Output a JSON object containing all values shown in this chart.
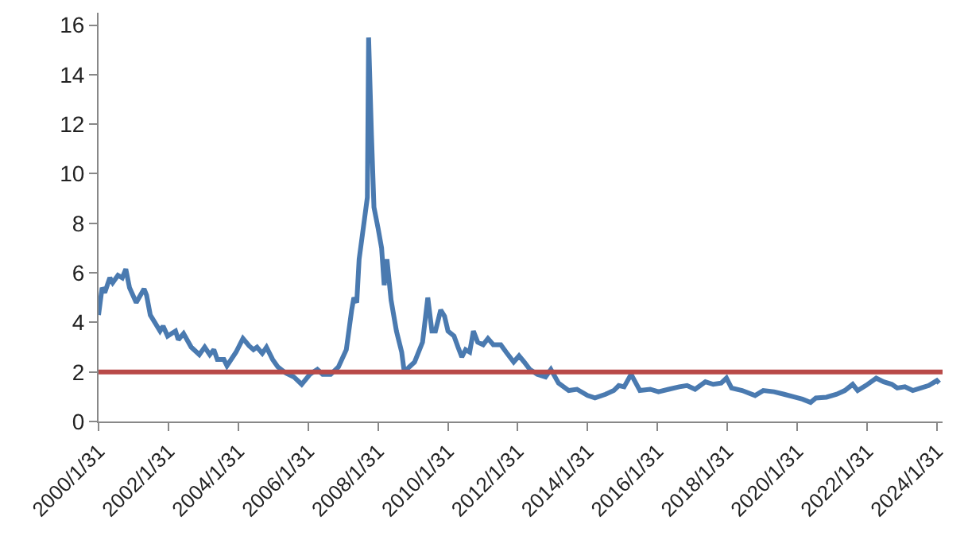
{
  "chart_data": {
    "type": "line",
    "x": [
      "2000-01-31",
      "2000-03-08",
      "2000-04-05",
      "2000-05-28",
      "2000-06-27",
      "2000-08-21",
      "2000-10-05",
      "2000-11-11",
      "2000-12-20",
      "2001-02-28",
      "2001-05-21",
      "2001-06-16",
      "2001-07-25",
      "2001-11-04",
      "2001-12-06",
      "2002-01-22",
      "2002-04-15",
      "2002-05-14",
      "2002-07-08",
      "2002-09-26",
      "2002-12-20",
      "2003-02-14",
      "2003-04-08",
      "2003-05-21",
      "2003-06-26",
      "2003-09-03",
      "2003-10-05",
      "2004-01-08",
      "2004-03-20",
      "2004-05-24",
      "2004-07-08",
      "2004-08-14",
      "2004-10-08",
      "2004-11-21",
      "2005-01-25",
      "2005-03-20",
      "2005-06-13",
      "2005-09-03",
      "2005-11-24",
      "2006-02-17",
      "2006-05-07",
      "2006-07-02",
      "2006-09-23",
      "2006-12-13",
      "2007-03-06",
      "2007-05-01",
      "2007-05-24",
      "2007-06-23",
      "2007-07-18",
      "2007-09-13",
      "2007-10-12",
      "2007-10-25",
      "2007-11-24",
      "2007-12-20",
      "2008-02-01",
      "2008-03-09",
      "2008-04-05",
      "2008-05-04",
      "2008-06-16",
      "2008-08-11",
      "2008-10-05",
      "2008-11-01",
      "2008-12-23",
      "2009-02-17",
      "2009-05-11",
      "2009-07-05",
      "2009-08-17",
      "2009-09-23",
      "2009-11-17",
      "2009-12-27",
      "2010-02-01",
      "2010-04-05",
      "2010-05-17",
      "2010-06-26",
      "2010-08-04",
      "2010-09-16",
      "2010-10-25",
      "2010-12-09",
      "2011-02-04",
      "2011-03-26",
      "2011-05-21",
      "2011-08-07",
      "2011-10-02",
      "2011-12-20",
      "2012-02-14",
      "2012-04-08",
      "2012-06-06",
      "2012-08-24",
      "2012-11-17",
      "2013-01-12",
      "2013-04-02",
      "2013-07-18",
      "2013-10-12",
      "2014-01-31",
      "2014-04-18",
      "2014-08-07",
      "2014-11-01",
      "2014-12-23",
      "2015-02-17",
      "2015-05-01",
      "2015-06-06",
      "2015-08-01",
      "2015-11-17",
      "2016-02-11",
      "2016-05-28",
      "2016-09-16",
      "2016-12-06",
      "2017-02-28",
      "2017-06-16",
      "2017-09-06",
      "2017-11-28",
      "2018-01-22",
      "2018-03-16",
      "2018-07-05",
      "2018-11-17",
      "2019-02-11",
      "2019-06-03",
      "2019-09-16",
      "2020-01-08",
      "2020-03-26",
      "2020-06-20",
      "2020-08-14",
      "2020-12-03",
      "2021-03-20",
      "2021-06-13",
      "2021-09-03",
      "2021-10-25",
      "2022-01-18",
      "2022-05-07",
      "2022-07-25",
      "2022-10-18",
      "2022-12-13",
      "2023-03-03",
      "2023-05-24",
      "2023-08-17",
      "2023-11-07",
      "2024-01-31",
      "2024-02-25"
    ],
    "series": [
      {
        "color": "#4a7ab0",
        "values": [
          4.3,
          5.4,
          5.2,
          5.8,
          5.6,
          5.9,
          5.8,
          6.15,
          5.4,
          4.8,
          5.35,
          5.1,
          4.3,
          3.65,
          3.85,
          3.45,
          3.65,
          3.3,
          3.55,
          3.0,
          2.7,
          3.0,
          2.7,
          2.9,
          2.5,
          2.5,
          2.25,
          2.8,
          3.35,
          3.05,
          2.9,
          3.0,
          2.75,
          3.0,
          2.5,
          2.2,
          1.95,
          1.8,
          1.5,
          1.9,
          2.1,
          1.9,
          1.9,
          2.2,
          2.9,
          4.5,
          5.0,
          4.8,
          6.55,
          8.2,
          9.05,
          15.5,
          11.55,
          8.65,
          7.8,
          7.0,
          5.5,
          6.55,
          4.9,
          3.65,
          2.8,
          2.0,
          2.2,
          2.4,
          3.2,
          5.0,
          3.65,
          3.65,
          4.5,
          4.25,
          3.65,
          3.45,
          3.0,
          2.6,
          2.9,
          2.8,
          3.65,
          3.2,
          3.1,
          3.35,
          3.1,
          3.1,
          2.8,
          2.4,
          2.65,
          2.4,
          2.1,
          1.9,
          1.8,
          2.1,
          1.55,
          1.25,
          1.3,
          1.05,
          0.95,
          1.1,
          1.25,
          1.45,
          1.4,
          1.9,
          1.65,
          1.25,
          1.3,
          1.2,
          1.3,
          1.4,
          1.45,
          1.3,
          1.6,
          1.5,
          1.55,
          1.75,
          1.35,
          1.25,
          1.05,
          1.25,
          1.2,
          1.1,
          0.98,
          0.9,
          0.77,
          0.95,
          0.98,
          1.1,
          1.25,
          1.5,
          1.25,
          1.45,
          1.75,
          1.6,
          1.5,
          1.35,
          1.4,
          1.25,
          1.35,
          1.45,
          1.65,
          1.55
        ]
      }
    ],
    "xlim": [
      "2000-01-31",
      "2024-03-31"
    ],
    "xticks": [
      {
        "value": "2000-01-31",
        "label": "2000/1/31"
      },
      {
        "value": "2002-01-31",
        "label": "2002/1/31"
      },
      {
        "value": "2004-01-31",
        "label": "2004/1/31"
      },
      {
        "value": "2006-01-31",
        "label": "2006/1/31"
      },
      {
        "value": "2008-01-31",
        "label": "2008/1/31"
      },
      {
        "value": "2010-01-31",
        "label": "2010/1/31"
      },
      {
        "value": "2012-01-31",
        "label": "2012/1/31"
      },
      {
        "value": "2014-01-31",
        "label": "2014/1/31"
      },
      {
        "value": "2016-01-31",
        "label": "2016/1/31"
      },
      {
        "value": "2018-01-31",
        "label": "2018/1/31"
      },
      {
        "value": "2020-01-31",
        "label": "2020/1/31"
      },
      {
        "value": "2022-01-31",
        "label": "2022/1/31"
      },
      {
        "value": "2024-01-31",
        "label": "2024/1/31"
      }
    ],
    "ylim": [
      0,
      16.5
    ],
    "yticks": [
      0,
      2,
      4,
      6,
      8,
      10,
      12,
      14,
      16
    ],
    "ref_lines": [
      {
        "axis": "y",
        "value": 2,
        "color": "#b94a48"
      }
    ],
    "marker": "none",
    "line_style": "solid"
  }
}
